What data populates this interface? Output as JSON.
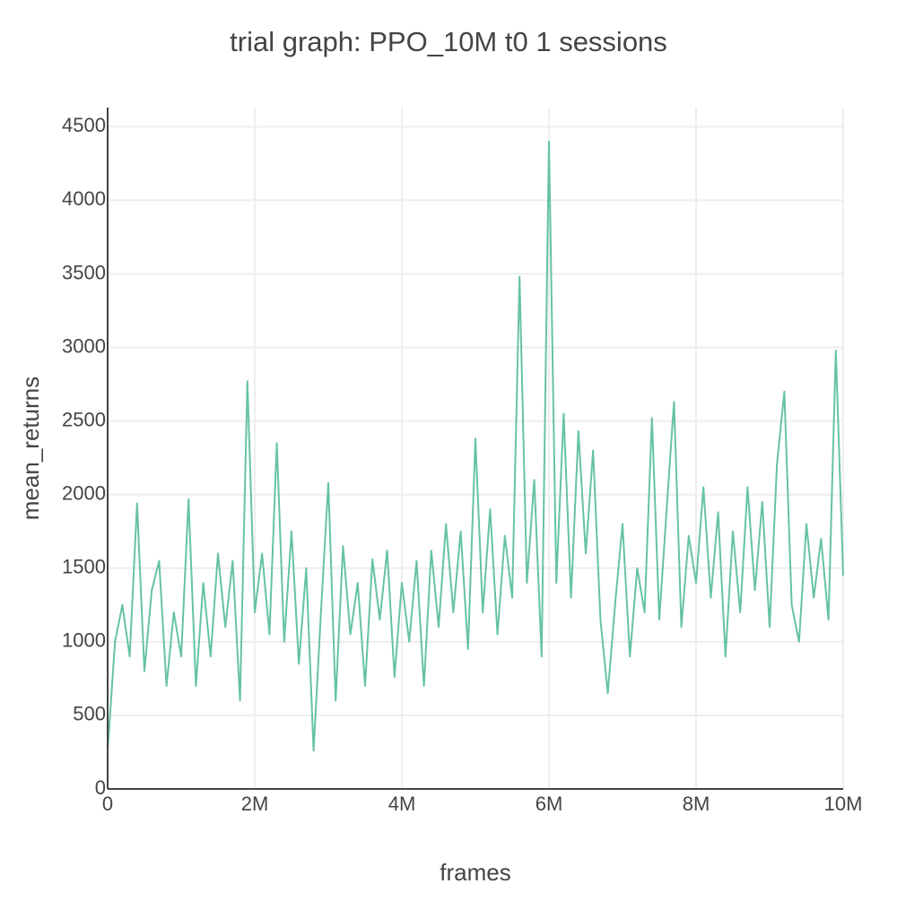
{
  "chart_data": {
    "type": "line",
    "title": "trial graph: PPO_10M t0 1 sessions",
    "x_label": "frames",
    "y_label": "mean_returns",
    "color": "#66c2a5",
    "grid": true,
    "x": [
      0,
      100000,
      200000,
      300000,
      400000,
      500000,
      600000,
      700000,
      800000,
      900000,
      1000000,
      1100000,
      1200000,
      1300000,
      1400000,
      1500000,
      1600000,
      1700000,
      1800000,
      1900000,
      2000000,
      2100000,
      2200000,
      2300000,
      2400000,
      2500000,
      2600000,
      2700000,
      2800000,
      2900000,
      3000000,
      3100000,
      3200000,
      3300000,
      3400000,
      3500000,
      3600000,
      3700000,
      3800000,
      3900000,
      4000000,
      4100000,
      4200000,
      4300000,
      4400000,
      4500000,
      4600000,
      4700000,
      4800000,
      4900000,
      5000000,
      5100000,
      5200000,
      5300000,
      5400000,
      5500000,
      5600000,
      5700000,
      5800000,
      5900000,
      6000000,
      6100000,
      6200000,
      6300000,
      6400000,
      6500000,
      6600000,
      6700000,
      6800000,
      6900000,
      7000000,
      7100000,
      7200000,
      7300000,
      7400000,
      7500000,
      7600000,
      7700000,
      7800000,
      7900000,
      8000000,
      8100000,
      8200000,
      8300000,
      8400000,
      8500000,
      8600000,
      8700000,
      8800000,
      8900000,
      9000000,
      9100000,
      9200000,
      9300000,
      9400000,
      9500000,
      9600000,
      9700000,
      9800000,
      9900000,
      10000000
    ],
    "values": [
      260,
      1000,
      1250,
      900,
      1940,
      800,
      1350,
      1550,
      700,
      1200,
      900,
      1970,
      700,
      1400,
      900,
      1600,
      1100,
      1550,
      600,
      2770,
      1200,
      1600,
      1050,
      2350,
      1000,
      1750,
      850,
      1500,
      260,
      1200,
      2080,
      600,
      1650,
      1050,
      1400,
      700,
      1560,
      1150,
      1620,
      760,
      1400,
      1000,
      1550,
      700,
      1620,
      1100,
      1800,
      1200,
      1750,
      950,
      2380,
      1200,
      1900,
      1050,
      1720,
      1300,
      3480,
      1400,
      2100,
      900,
      4400,
      1400,
      2550,
      1300,
      2430,
      1600,
      2300,
      1150,
      650,
      1260,
      1800,
      900,
      1500,
      1200,
      2520,
      1150,
      1900,
      2630,
      1100,
      1720,
      1400,
      2050,
      1300,
      1880,
      900,
      1750,
      1200,
      2050,
      1350,
      1950,
      1100,
      2210,
      2700,
      1250,
      1000,
      1800,
      1300,
      1700,
      1150,
      2980,
      1450
    ],
    "xlim": [
      0,
      10000000
    ],
    "ylim": [
      0,
      4630
    ],
    "xticks": [
      0,
      {
        "value": 2000000,
        "label": "2M"
      },
      {
        "value": 4000000,
        "label": "4M"
      },
      {
        "value": 6000000,
        "label": "6M"
      },
      {
        "value": 8000000,
        "label": "8M"
      },
      {
        "value": 10000000,
        "label": "10M"
      }
    ],
    "yticks": [
      0,
      500,
      1000,
      1500,
      2000,
      2500,
      3000,
      3500,
      4000,
      4500
    ]
  }
}
